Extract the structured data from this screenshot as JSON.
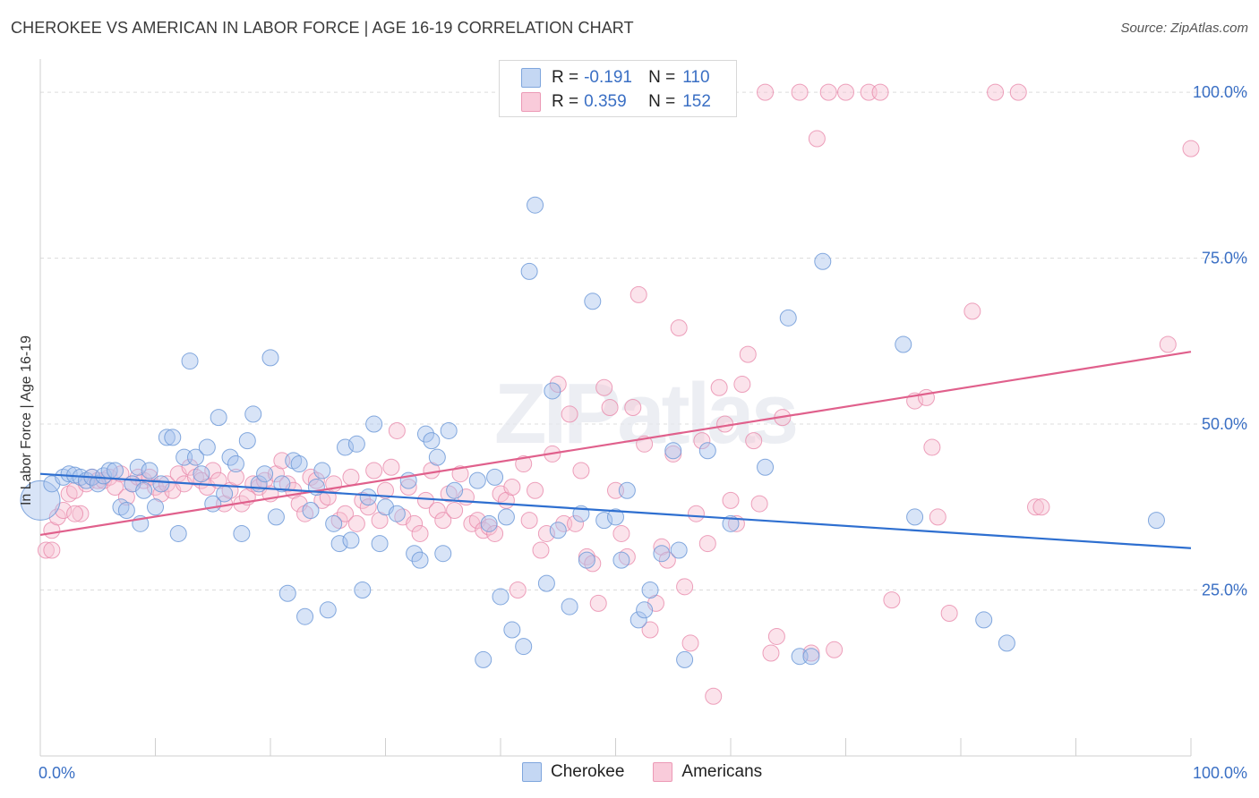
{
  "header": {
    "title": "CHEROKEE VS AMERICAN IN LABOR FORCE | AGE 16-19 CORRELATION CHART",
    "source": "Source: ZipAtlas.com"
  },
  "watermark": "ZIPatlas",
  "legend": {
    "rows": [
      {
        "r_label": "R =",
        "r_value": "-0.191",
        "n_label": "N =",
        "n_value": "110",
        "color": "#a9c4ee"
      },
      {
        "r_label": "R =",
        "r_value": "0.359",
        "n_label": "N =",
        "n_value": "152",
        "color": "#f5b3c8"
      }
    ],
    "bottom": [
      {
        "label": "Cherokee",
        "color": "#a9c4ee"
      },
      {
        "label": "Americans",
        "color": "#f5b3c8"
      }
    ]
  },
  "colors": {
    "cherokee_fill": "#a9c4ee",
    "cherokee_stroke": "#6f9ad8",
    "cherokee_line": "#2e6fd0",
    "americans_fill": "#f7c0d2",
    "americans_stroke": "#e98aab",
    "americans_line": "#e0608c",
    "tick_text": "#3a6fc4"
  },
  "chart_data": {
    "type": "scatter",
    "title": "CHEROKEE VS AMERICAN IN LABOR FORCE | AGE 16-19 CORRELATION CHART",
    "xlabel": "",
    "ylabel": "In Labor Force | Age 16-19",
    "xlim": [
      0,
      100
    ],
    "ylim": [
      0,
      105
    ],
    "x_tick_labels": [
      "0.0%",
      "100.0%"
    ],
    "y_ticks": [
      25,
      50,
      75,
      100
    ],
    "y_tick_labels": [
      "25.0%",
      "50.0%",
      "75.0%",
      "100.0%"
    ],
    "grid": "horizontal dashed",
    "legend_position": "top-center",
    "series": [
      {
        "name": "Cherokee",
        "r": -0.191,
        "n": 110,
        "trend": {
          "x": [
            0,
            100
          ],
          "y": [
            42.5,
            31.3
          ]
        },
        "points": [
          [
            0,
            38.5
          ],
          [
            1,
            41
          ],
          [
            2,
            42
          ],
          [
            2.5,
            42.5
          ],
          [
            3,
            42.3
          ],
          [
            3.5,
            42
          ],
          [
            4,
            41.5
          ],
          [
            4.5,
            42
          ],
          [
            5,
            41
          ],
          [
            5.5,
            42.2
          ],
          [
            6,
            43
          ],
          [
            6.5,
            43
          ],
          [
            7,
            37.5
          ],
          [
            7.5,
            37
          ],
          [
            8,
            41
          ],
          [
            8.5,
            43.5
          ],
          [
            8.7,
            35
          ],
          [
            9,
            40
          ],
          [
            9.5,
            43
          ],
          [
            10,
            37.5
          ],
          [
            10.5,
            41
          ],
          [
            11,
            48
          ],
          [
            11.5,
            48
          ],
          [
            12,
            33.5
          ],
          [
            12.5,
            45
          ],
          [
            13,
            59.5
          ],
          [
            13.5,
            45
          ],
          [
            14,
            42.5
          ],
          [
            14.5,
            46.5
          ],
          [
            15,
            38
          ],
          [
            15.5,
            51
          ],
          [
            16,
            39.5
          ],
          [
            16.5,
            45
          ],
          [
            17,
            44
          ],
          [
            17.5,
            33.5
          ],
          [
            18,
            47.5
          ],
          [
            18.5,
            51.5
          ],
          [
            19,
            41
          ],
          [
            19.5,
            42.5
          ],
          [
            20,
            60
          ],
          [
            20.5,
            36
          ],
          [
            21,
            41
          ],
          [
            21.5,
            24.5
          ],
          [
            22,
            44.5
          ],
          [
            22.5,
            44
          ],
          [
            23,
            21
          ],
          [
            23.5,
            37
          ],
          [
            24,
            40.5
          ],
          [
            24.5,
            43
          ],
          [
            25,
            22
          ],
          [
            25.5,
            35
          ],
          [
            26,
            32
          ],
          [
            26.5,
            46.5
          ],
          [
            27,
            32.5
          ],
          [
            27.5,
            47
          ],
          [
            28,
            25
          ],
          [
            28.5,
            39
          ],
          [
            29,
            50
          ],
          [
            29.5,
            32
          ],
          [
            30,
            37.5
          ],
          [
            31,
            36.5
          ],
          [
            32,
            41.5
          ],
          [
            32.5,
            30.5
          ],
          [
            33,
            29.5
          ],
          [
            33.5,
            48.5
          ],
          [
            34,
            47.5
          ],
          [
            34.5,
            45
          ],
          [
            35,
            30.5
          ],
          [
            35.5,
            49
          ],
          [
            36,
            40
          ],
          [
            38,
            41.5
          ],
          [
            38.5,
            14.5
          ],
          [
            39,
            35
          ],
          [
            40,
            24
          ],
          [
            40.5,
            36
          ],
          [
            41,
            19
          ],
          [
            42,
            16.5
          ],
          [
            42.5,
            73
          ],
          [
            43,
            83
          ],
          [
            44,
            26
          ],
          [
            45,
            34
          ],
          [
            46,
            22.5
          ],
          [
            47,
            36.5
          ],
          [
            47.5,
            29.5
          ],
          [
            48,
            68.5
          ],
          [
            49,
            35.5
          ],
          [
            50,
            36
          ],
          [
            50.5,
            29.5
          ],
          [
            51,
            40
          ],
          [
            52,
            20.5
          ],
          [
            52.5,
            22
          ],
          [
            53,
            25
          ],
          [
            54,
            30.5
          ],
          [
            55,
            46
          ],
          [
            55.5,
            31
          ],
          [
            56,
            14.5
          ],
          [
            65,
            66
          ],
          [
            66,
            15
          ],
          [
            67,
            15
          ],
          [
            68,
            74.5
          ],
          [
            75,
            62
          ],
          [
            76,
            36
          ],
          [
            82,
            20.5
          ],
          [
            84,
            17
          ],
          [
            97,
            35.5
          ],
          [
            58,
            46
          ],
          [
            63,
            43.5
          ],
          [
            60,
            35
          ],
          [
            44.5,
            55
          ],
          [
            39.5,
            42
          ]
        ]
      },
      {
        "name": "Americans",
        "r": 0.359,
        "n": 152,
        "trend": {
          "x": [
            0,
            100
          ],
          "y": [
            33.3,
            60.9
          ]
        },
        "points": [
          [
            0.5,
            31
          ],
          [
            1,
            34
          ],
          [
            1.5,
            36
          ],
          [
            2,
            37
          ],
          [
            2.5,
            39.5
          ],
          [
            3,
            40
          ],
          [
            3.5,
            36.5
          ],
          [
            4,
            41
          ],
          [
            4.5,
            42
          ],
          [
            5,
            41.5
          ],
          [
            5.5,
            41.5
          ],
          [
            6,
            42
          ],
          [
            6.5,
            40.5
          ],
          [
            7,
            42.5
          ],
          [
            7.5,
            39
          ],
          [
            8,
            41
          ],
          [
            8.5,
            42
          ],
          [
            9,
            41.5
          ],
          [
            9.5,
            42
          ],
          [
            10,
            40.5
          ],
          [
            10.5,
            39.5
          ],
          [
            11,
            41
          ],
          [
            11.5,
            40
          ],
          [
            12,
            42.5
          ],
          [
            12.5,
            41
          ],
          [
            13,
            43.5
          ],
          [
            13.5,
            42
          ],
          [
            14,
            41.5
          ],
          [
            14.5,
            40.5
          ],
          [
            15,
            43
          ],
          [
            15.5,
            41.5
          ],
          [
            16,
            38
          ],
          [
            16.5,
            40
          ],
          [
            17,
            42
          ],
          [
            17.5,
            38
          ],
          [
            18,
            39
          ],
          [
            18.5,
            41
          ],
          [
            19,
            40.5
          ],
          [
            19.5,
            41.5
          ],
          [
            20,
            39.5
          ],
          [
            20.5,
            42.5
          ],
          [
            21,
            44.5
          ],
          [
            21.5,
            41
          ],
          [
            22,
            40
          ],
          [
            22.5,
            38
          ],
          [
            23,
            36.5
          ],
          [
            23.5,
            42
          ],
          [
            24,
            41.5
          ],
          [
            24.5,
            38.5
          ],
          [
            25,
            39
          ],
          [
            25.5,
            41
          ],
          [
            26,
            35.5
          ],
          [
            26.5,
            36.5
          ],
          [
            27,
            42
          ],
          [
            27.5,
            35
          ],
          [
            28,
            38.5
          ],
          [
            28.5,
            37.5
          ],
          [
            29,
            43
          ],
          [
            29.5,
            35.5
          ],
          [
            30,
            40
          ],
          [
            30.5,
            43.5
          ],
          [
            31,
            49
          ],
          [
            31.5,
            36
          ],
          [
            32,
            40.5
          ],
          [
            32.5,
            35
          ],
          [
            33,
            33.5
          ],
          [
            33.5,
            38.5
          ],
          [
            34,
            43
          ],
          [
            34.5,
            37
          ],
          [
            35,
            35.5
          ],
          [
            35.5,
            39.5
          ],
          [
            36,
            37
          ],
          [
            36.5,
            42.5
          ],
          [
            37,
            39
          ],
          [
            37.5,
            35
          ],
          [
            38,
            35.5
          ],
          [
            38.5,
            34
          ],
          [
            39,
            34.5
          ],
          [
            39.5,
            33.5
          ],
          [
            40,
            39.5
          ],
          [
            40.5,
            38.5
          ],
          [
            41,
            40.5
          ],
          [
            41.5,
            25
          ],
          [
            42,
            44
          ],
          [
            42.5,
            35.5
          ],
          [
            43,
            40
          ],
          [
            43.5,
            31
          ],
          [
            44,
            33.5
          ],
          [
            44.5,
            45.5
          ],
          [
            45,
            56
          ],
          [
            45.5,
            35
          ],
          [
            46,
            51.5
          ],
          [
            46.5,
            35
          ],
          [
            47,
            43
          ],
          [
            47.5,
            30
          ],
          [
            48,
            29
          ],
          [
            48.5,
            23
          ],
          [
            49,
            55.5
          ],
          [
            49.5,
            52.5
          ],
          [
            50,
            40
          ],
          [
            50.5,
            33.5
          ],
          [
            51,
            30
          ],
          [
            51.5,
            52.5
          ],
          [
            52,
            69.5
          ],
          [
            52.5,
            47
          ],
          [
            53,
            19
          ],
          [
            53.5,
            23
          ],
          [
            54,
            31.5
          ],
          [
            54.5,
            29.5
          ],
          [
            55,
            45.5
          ],
          [
            55.5,
            64.5
          ],
          [
            56,
            25.5
          ],
          [
            56.5,
            17
          ],
          [
            57,
            36.5
          ],
          [
            57.5,
            47.5
          ],
          [
            58,
            32
          ],
          [
            58.5,
            9
          ],
          [
            59,
            55.5
          ],
          [
            59.5,
            50
          ],
          [
            60,
            38.5
          ],
          [
            60.5,
            35
          ],
          [
            61,
            56
          ],
          [
            61.5,
            60.5
          ],
          [
            62,
            47.5
          ],
          [
            62.5,
            38
          ],
          [
            63,
            100
          ],
          [
            63.5,
            15.5
          ],
          [
            64,
            18
          ],
          [
            64.5,
            51
          ],
          [
            66,
            100
          ],
          [
            67,
            15.5
          ],
          [
            67.5,
            93
          ],
          [
            68.5,
            100
          ],
          [
            69,
            16
          ],
          [
            70,
            100
          ],
          [
            72,
            100
          ],
          [
            73,
            100
          ],
          [
            74,
            23.5
          ],
          [
            76,
            53.5
          ],
          [
            77,
            54
          ],
          [
            77.5,
            46.5
          ],
          [
            78,
            36
          ],
          [
            79,
            21.5
          ],
          [
            81,
            67
          ],
          [
            83,
            100
          ],
          [
            85,
            100
          ],
          [
            86.5,
            37.5
          ],
          [
            87,
            37.5
          ],
          [
            98,
            62
          ],
          [
            100,
            91.5
          ],
          [
            1,
            31
          ],
          [
            3,
            36.5
          ]
        ]
      }
    ]
  }
}
